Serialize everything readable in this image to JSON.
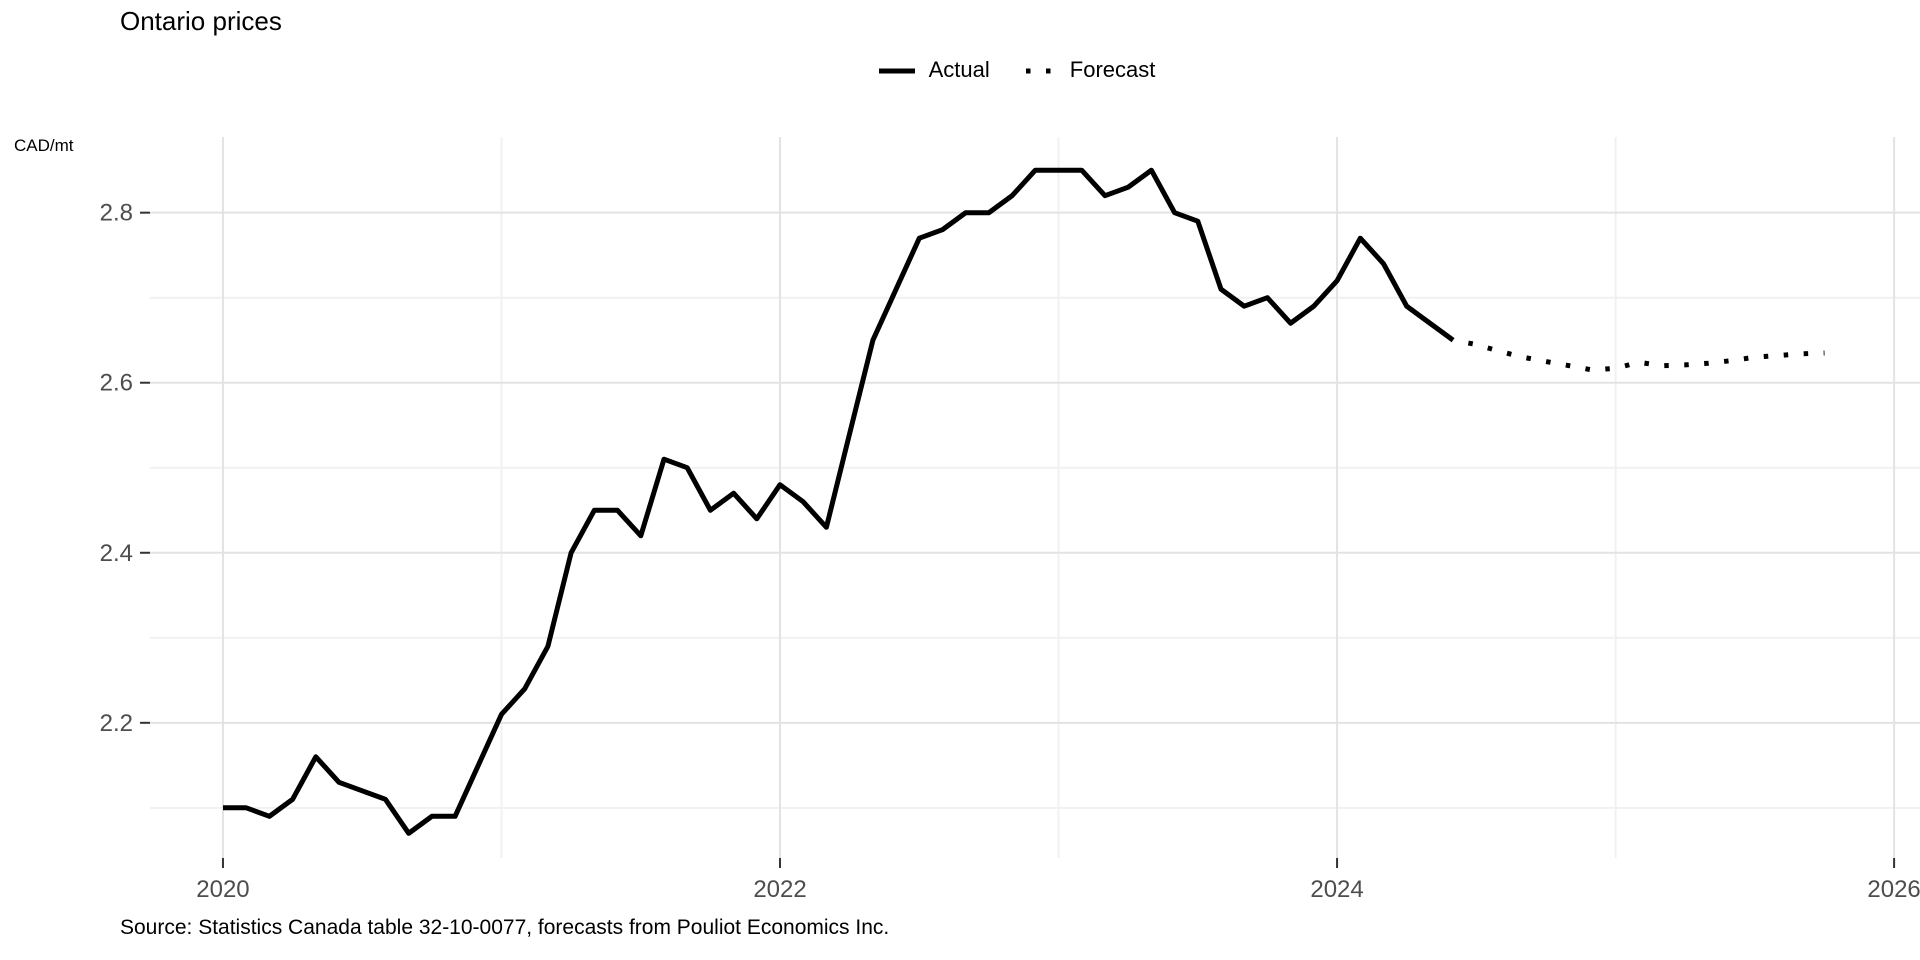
{
  "title": "Ontario prices",
  "y_axis_unit_label": "CAD/mt",
  "caption": "Source: Statistics Canada table 32-10-0077, forecasts from Pouliot Economics Inc.",
  "legend": {
    "actual_label": "Actual",
    "forecast_label": "Forecast"
  },
  "colors": {
    "line": "#000000",
    "grid_major": "#E3E3E3",
    "grid_minor": "#F1F1F1",
    "tick_mark": "#333333",
    "tick_label": "#4D4D4D",
    "background": "#FFFFFF"
  },
  "chart_data": {
    "type": "line",
    "title": "Ontario prices",
    "xlabel": "",
    "ylabel": "CAD/mt",
    "legend_position": "top",
    "grid": "on",
    "x_axis": {
      "tick_labels": [
        "2020",
        "2022",
        "2024",
        "2026"
      ],
      "major_breaks": [
        2020,
        2022,
        2024,
        2026
      ],
      "minor_breaks": [
        2021,
        2023,
        2025
      ],
      "lim": [
        2019.738,
        2026.093
      ]
    },
    "y_axis": {
      "tick_labels": [
        "2.2",
        "2.4",
        "2.6",
        "2.8"
      ],
      "major_breaks": [
        2.2,
        2.4,
        2.6,
        2.8
      ],
      "minor_breaks": [
        2.1,
        2.3,
        2.5,
        2.7
      ],
      "lim": [
        2.041,
        2.889
      ]
    },
    "series": [
      {
        "name": "Actual",
        "style": "solid",
        "start": "2020-01",
        "frequency": "monthly",
        "values": [
          2.1,
          2.1,
          2.09,
          2.11,
          2.16,
          2.13,
          2.12,
          2.11,
          2.07,
          2.09,
          2.09,
          2.15,
          2.21,
          2.24,
          2.29,
          2.4,
          2.45,
          2.45,
          2.42,
          2.51,
          2.5,
          2.45,
          2.47,
          2.44,
          2.48,
          2.46,
          2.43,
          2.54,
          2.65,
          2.71,
          2.77,
          2.78,
          2.8,
          2.8,
          2.82,
          2.85,
          2.85,
          2.85,
          2.82,
          2.83,
          2.85,
          2.8,
          2.79,
          2.71,
          2.69,
          2.7,
          2.67,
          2.69,
          2.72,
          2.77,
          2.74,
          2.69,
          2.67,
          2.65
        ]
      },
      {
        "name": "Forecast",
        "style": "dotted",
        "start": "2024-07",
        "frequency": "monthly",
        "values": [
          2.645,
          2.637,
          2.63,
          2.625,
          2.62,
          2.615,
          2.617,
          2.624,
          2.62,
          2.621,
          2.623,
          2.626,
          2.63,
          2.632,
          2.634,
          2.635
        ]
      }
    ]
  }
}
